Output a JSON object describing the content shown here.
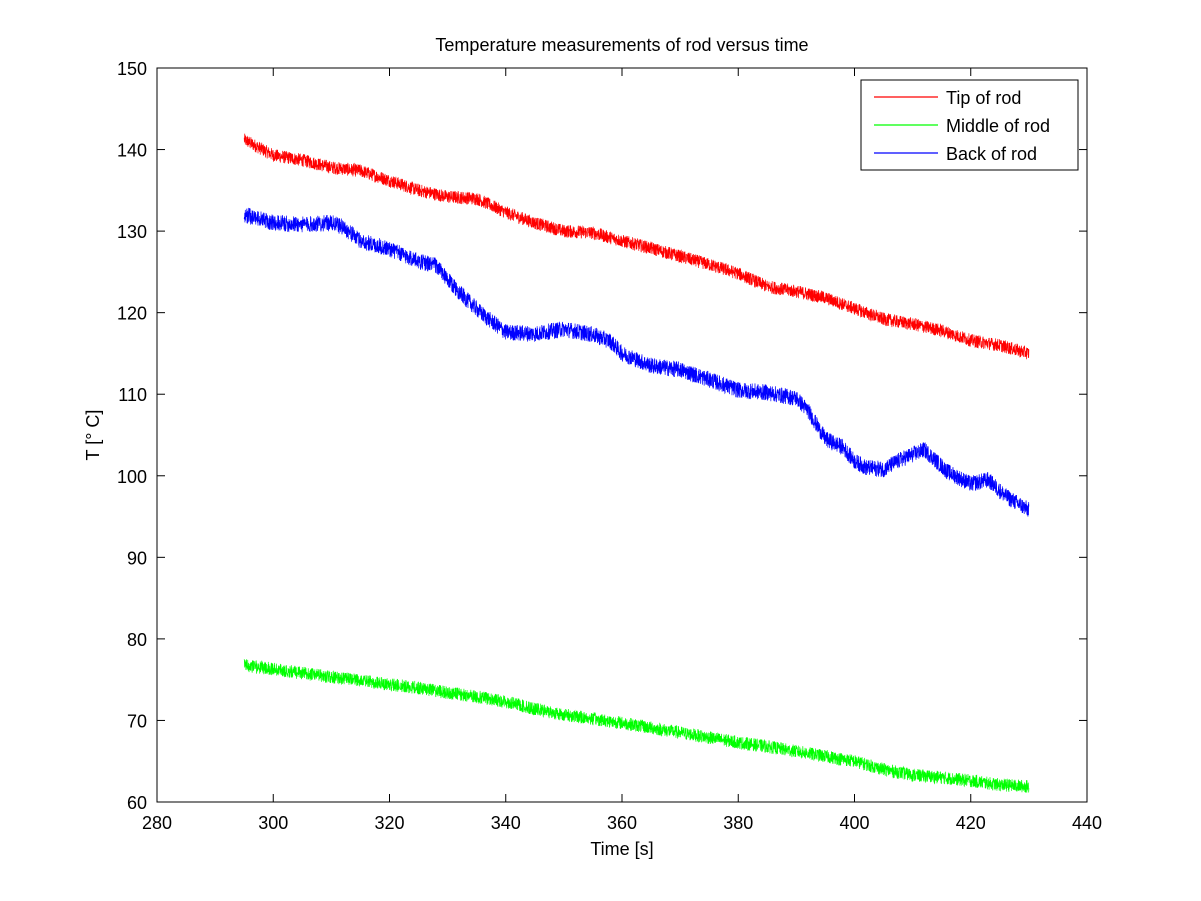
{
  "chart_data": {
    "type": "line",
    "title": "Temperature measurements of rod versus time",
    "xlabel": "Time [s]",
    "ylabel": "T [° C]",
    "xlim": [
      280,
      440
    ],
    "ylim": [
      60,
      150
    ],
    "xticks": [
      "280",
      "300",
      "320",
      "340",
      "360",
      "380",
      "400",
      "420",
      "440"
    ],
    "yticks": [
      "60",
      "70",
      "80",
      "90",
      "100",
      "110",
      "120",
      "130",
      "140",
      "150"
    ],
    "grid": false,
    "legend_position": "top-right",
    "series": [
      {
        "name": "Tip of rod",
        "color": "#ff0000",
        "noise": 0.8,
        "points": [
          [
            295,
            141.2
          ],
          [
            300,
            139.3
          ],
          [
            305,
            138.7
          ],
          [
            310,
            137.8
          ],
          [
            315,
            137.4
          ],
          [
            320,
            136.2
          ],
          [
            325,
            135.0
          ],
          [
            330,
            134.2
          ],
          [
            335,
            134.0
          ],
          [
            340,
            132.3
          ],
          [
            345,
            131.0
          ],
          [
            350,
            130.0
          ],
          [
            355,
            129.8
          ],
          [
            360,
            128.8
          ],
          [
            365,
            127.9
          ],
          [
            370,
            126.9
          ],
          [
            375,
            125.9
          ],
          [
            380,
            124.8
          ],
          [
            385,
            123.2
          ],
          [
            390,
            122.6
          ],
          [
            395,
            121.8
          ],
          [
            400,
            120.5
          ],
          [
            405,
            119.2
          ],
          [
            410,
            118.6
          ],
          [
            415,
            117.8
          ],
          [
            420,
            116.6
          ],
          [
            425,
            116.0
          ],
          [
            430,
            115.0
          ]
        ]
      },
      {
        "name": "Middle of rod",
        "color": "#00ff00",
        "noise": 0.8,
        "points": [
          [
            295,
            76.8
          ],
          [
            300,
            76.3
          ],
          [
            305,
            75.8
          ],
          [
            310,
            75.3
          ],
          [
            315,
            74.9
          ],
          [
            320,
            74.4
          ],
          [
            325,
            74.0
          ],
          [
            330,
            73.4
          ],
          [
            335,
            72.9
          ],
          [
            340,
            72.3
          ],
          [
            345,
            71.4
          ],
          [
            350,
            70.7
          ],
          [
            355,
            70.2
          ],
          [
            360,
            69.7
          ],
          [
            365,
            69.1
          ],
          [
            370,
            68.5
          ],
          [
            375,
            67.9
          ],
          [
            380,
            67.3
          ],
          [
            385,
            66.8
          ],
          [
            390,
            66.2
          ],
          [
            395,
            65.6
          ],
          [
            400,
            65.0
          ],
          [
            405,
            64.0
          ],
          [
            410,
            63.3
          ],
          [
            415,
            63.0
          ],
          [
            420,
            62.6
          ],
          [
            425,
            62.1
          ],
          [
            430,
            61.9
          ]
        ]
      },
      {
        "name": "Back of rod",
        "color": "#0000ff",
        "noise": 1.0,
        "points": [
          [
            295,
            132.0
          ],
          [
            300,
            131.0
          ],
          [
            305,
            130.8
          ],
          [
            310,
            131.0
          ],
          [
            312,
            130.5
          ],
          [
            315,
            128.8
          ],
          [
            320,
            127.8
          ],
          [
            325,
            126.3
          ],
          [
            328,
            125.8
          ],
          [
            330,
            124.0
          ],
          [
            333,
            121.8
          ],
          [
            336,
            119.8
          ],
          [
            340,
            117.6
          ],
          [
            345,
            117.4
          ],
          [
            350,
            118.0
          ],
          [
            355,
            117.3
          ],
          [
            358,
            116.5
          ],
          [
            360,
            115.0
          ],
          [
            365,
            113.5
          ],
          [
            370,
            113.0
          ],
          [
            375,
            111.8
          ],
          [
            380,
            110.5
          ],
          [
            385,
            110.2
          ],
          [
            390,
            109.5
          ],
          [
            392,
            108.0
          ],
          [
            395,
            104.5
          ],
          [
            398,
            103.5
          ],
          [
            400,
            101.8
          ],
          [
            402,
            101.0
          ],
          [
            405,
            100.8
          ],
          [
            408,
            102.0
          ],
          [
            412,
            103.2
          ],
          [
            416,
            100.5
          ],
          [
            420,
            99.0
          ],
          [
            423,
            99.5
          ],
          [
            426,
            97.5
          ],
          [
            430,
            95.8
          ]
        ]
      }
    ]
  }
}
